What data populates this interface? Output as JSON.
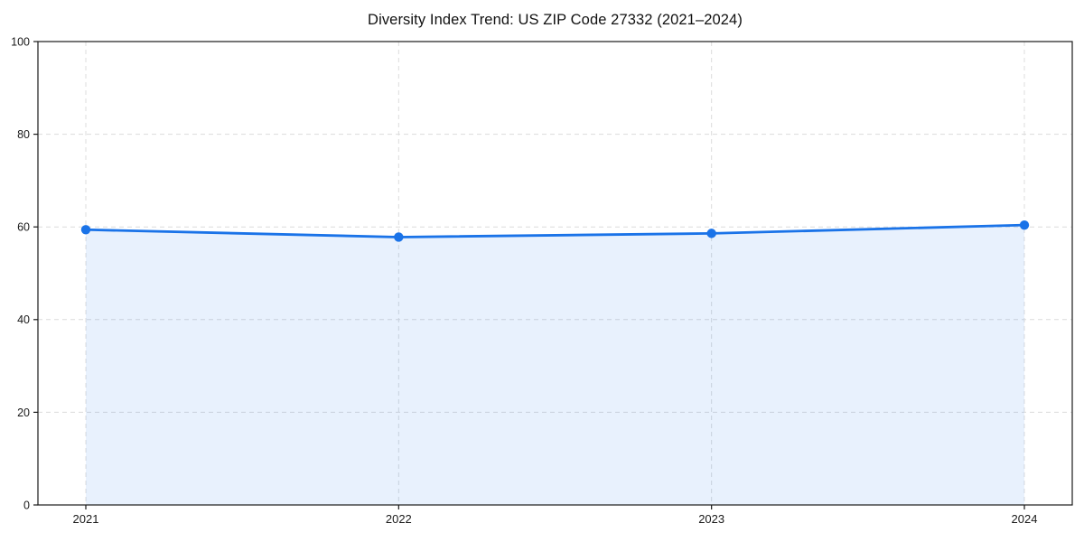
{
  "chart_data": {
    "type": "line",
    "title": "Diversity Index Trend: US ZIP Code 27332 (2021–2024)",
    "x": [
      "2021",
      "2022",
      "2023",
      "2024"
    ],
    "values": [
      59.4,
      57.8,
      58.6,
      60.4
    ],
    "xlabel": "",
    "ylabel": "",
    "ylim": [
      0,
      100
    ],
    "yticks": [
      0,
      20,
      40,
      60,
      80,
      100
    ],
    "grid": "dashed",
    "legend": "none",
    "area_fill": true,
    "colors": {
      "line": "#1a73e8",
      "marker": "#1a73e8",
      "area_fill": "rgba(26,115,232,0.10)",
      "grid": "#dcdcdc",
      "spine": "#1a1a1a",
      "tick_label": "#1a1a1a",
      "title": "#111111"
    }
  }
}
